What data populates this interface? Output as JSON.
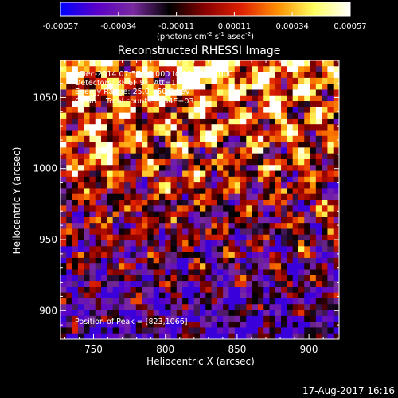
{
  "chart_data": {
    "type": "heatmap",
    "title": "Reconstructed RHESSI Image",
    "xlabel": "Heliocentric X (arcsec)",
    "ylabel": "Heliocentric Y (arcsec)",
    "xlim": [
      727,
      921
    ],
    "ylim": [
      880,
      1076
    ],
    "xticks": [
      750,
      800,
      850,
      900
    ],
    "yticks": [
      900,
      950,
      1000,
      1050
    ],
    "colorbar": {
      "label_prefix": "(photons cm",
      "label_sup1": "-2",
      "label_mid1": " s",
      "label_sup2": "-1",
      "label_mid2": " asec",
      "label_sup3": "-2",
      "label_suffix": ")",
      "range": [
        -0.00057,
        0.00057
      ],
      "ticks": [
        "-0.00057",
        "-0.00034",
        "-0.00011",
        "0.00011",
        "0.00034",
        "0.00057"
      ],
      "colors": [
        "#0000ff",
        "#5a00c8",
        "#7a2aa0",
        "#000000",
        "#8a0000",
        "#e02000",
        "#ff9000",
        "#ffff60",
        "#ffffff"
      ]
    },
    "annotations": {
      "time": "1-Dec-2014 07:57:08.000 to 08:07:08.000",
      "detectors": "Detectors: 3F 6F 9F, Att=1",
      "energy": "Energy Range: 25.0 - 50.0 keV",
      "clean": "Clean    Total counts: 5.84E+03",
      "peak": "Position of Peak = [823,1066]"
    },
    "peak": [
      823,
      1066
    ],
    "grid": false
  },
  "timestamp": "17-Aug-2017 16:16"
}
